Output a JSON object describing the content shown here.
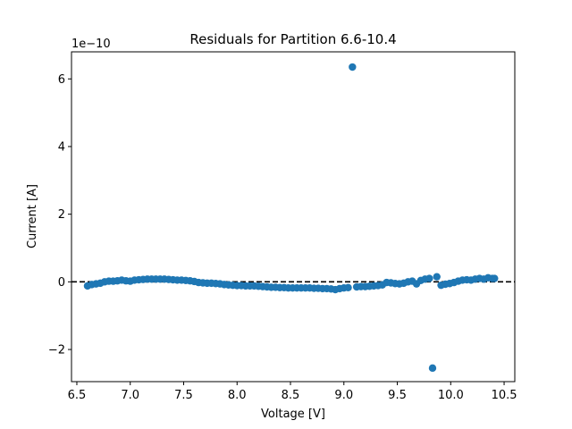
{
  "chart_data": {
    "type": "scatter",
    "title": "Residuals for Partition 6.6-10.4",
    "xlabel": "Voltage [V]",
    "ylabel": "Current [A]",
    "y_scale_label": "1e−10",
    "xlim": [
      6.45,
      10.6
    ],
    "ylim": [
      -2.95,
      6.8
    ],
    "xticks": [
      6.5,
      7.0,
      7.5,
      8.0,
      8.5,
      9.0,
      9.5,
      10.0,
      10.5
    ],
    "xtick_labels": [
      "6.5",
      "7.0",
      "7.5",
      "8.0",
      "8.5",
      "9.0",
      "9.5",
      "10.0",
      "10.5"
    ],
    "yticks": [
      -2,
      0,
      2,
      4,
      6
    ],
    "ytick_labels": [
      "−2",
      "0",
      "2",
      "4",
      "6"
    ],
    "reference_line": {
      "y": 0,
      "style": "dashed",
      "color": "#000000"
    },
    "marker_color": "#1f77b4",
    "grid": false,
    "series": [
      {
        "x": [
          6.6,
          6.64,
          6.68,
          6.72,
          6.76,
          6.8,
          6.84,
          6.88,
          6.92,
          6.96,
          7.0,
          7.04,
          7.08,
          7.12,
          7.16,
          7.2,
          7.24,
          7.28,
          7.32,
          7.36,
          7.4,
          7.44,
          7.48,
          7.52,
          7.56,
          7.6,
          7.64,
          7.68,
          7.72,
          7.76,
          7.8,
          7.84,
          7.88,
          7.92,
          7.96,
          8.0,
          8.04,
          8.08,
          8.12,
          8.16,
          8.2,
          8.24,
          8.28,
          8.32,
          8.36,
          8.4,
          8.44,
          8.48,
          8.52,
          8.56,
          8.6,
          8.64,
          8.68,
          8.72,
          8.76,
          8.8,
          8.84,
          8.88,
          8.92,
          8.96,
          9.0,
          9.04,
          9.08,
          9.12,
          9.16,
          9.2,
          9.24,
          9.28,
          9.32,
          9.36,
          9.4,
          9.44,
          9.48,
          9.52,
          9.56,
          9.6,
          9.64,
          9.68,
          9.72,
          9.76,
          9.8,
          9.83,
          9.87,
          9.91,
          9.95,
          9.99,
          10.03,
          10.07,
          10.11,
          10.15,
          10.19,
          10.23,
          10.27,
          10.31,
          10.35,
          10.39,
          10.41
        ],
        "y": [
          -0.12,
          -0.08,
          -0.06,
          -0.04,
          0.0,
          0.02,
          0.02,
          0.03,
          0.05,
          0.03,
          0.02,
          0.05,
          0.06,
          0.07,
          0.08,
          0.08,
          0.08,
          0.08,
          0.08,
          0.07,
          0.06,
          0.05,
          0.05,
          0.04,
          0.03,
          0.01,
          -0.02,
          -0.03,
          -0.04,
          -0.04,
          -0.05,
          -0.06,
          -0.08,
          -0.09,
          -0.1,
          -0.11,
          -0.11,
          -0.12,
          -0.12,
          -0.12,
          -0.13,
          -0.14,
          -0.15,
          -0.16,
          -0.16,
          -0.17,
          -0.17,
          -0.18,
          -0.18,
          -0.18,
          -0.18,
          -0.18,
          -0.18,
          -0.19,
          -0.19,
          -0.2,
          -0.2,
          -0.21,
          -0.23,
          -0.2,
          -0.18,
          -0.17,
          6.35,
          -0.15,
          -0.14,
          -0.14,
          -0.13,
          -0.12,
          -0.11,
          -0.09,
          -0.02,
          -0.03,
          -0.05,
          -0.06,
          -0.04,
          0.0,
          0.02,
          -0.06,
          0.04,
          0.08,
          0.1,
          -2.55,
          0.15,
          -0.1,
          -0.07,
          -0.05,
          -0.02,
          0.02,
          0.05,
          0.06,
          0.05,
          0.08,
          0.1,
          0.08,
          0.12,
          0.1,
          0.1
        ]
      }
    ]
  }
}
